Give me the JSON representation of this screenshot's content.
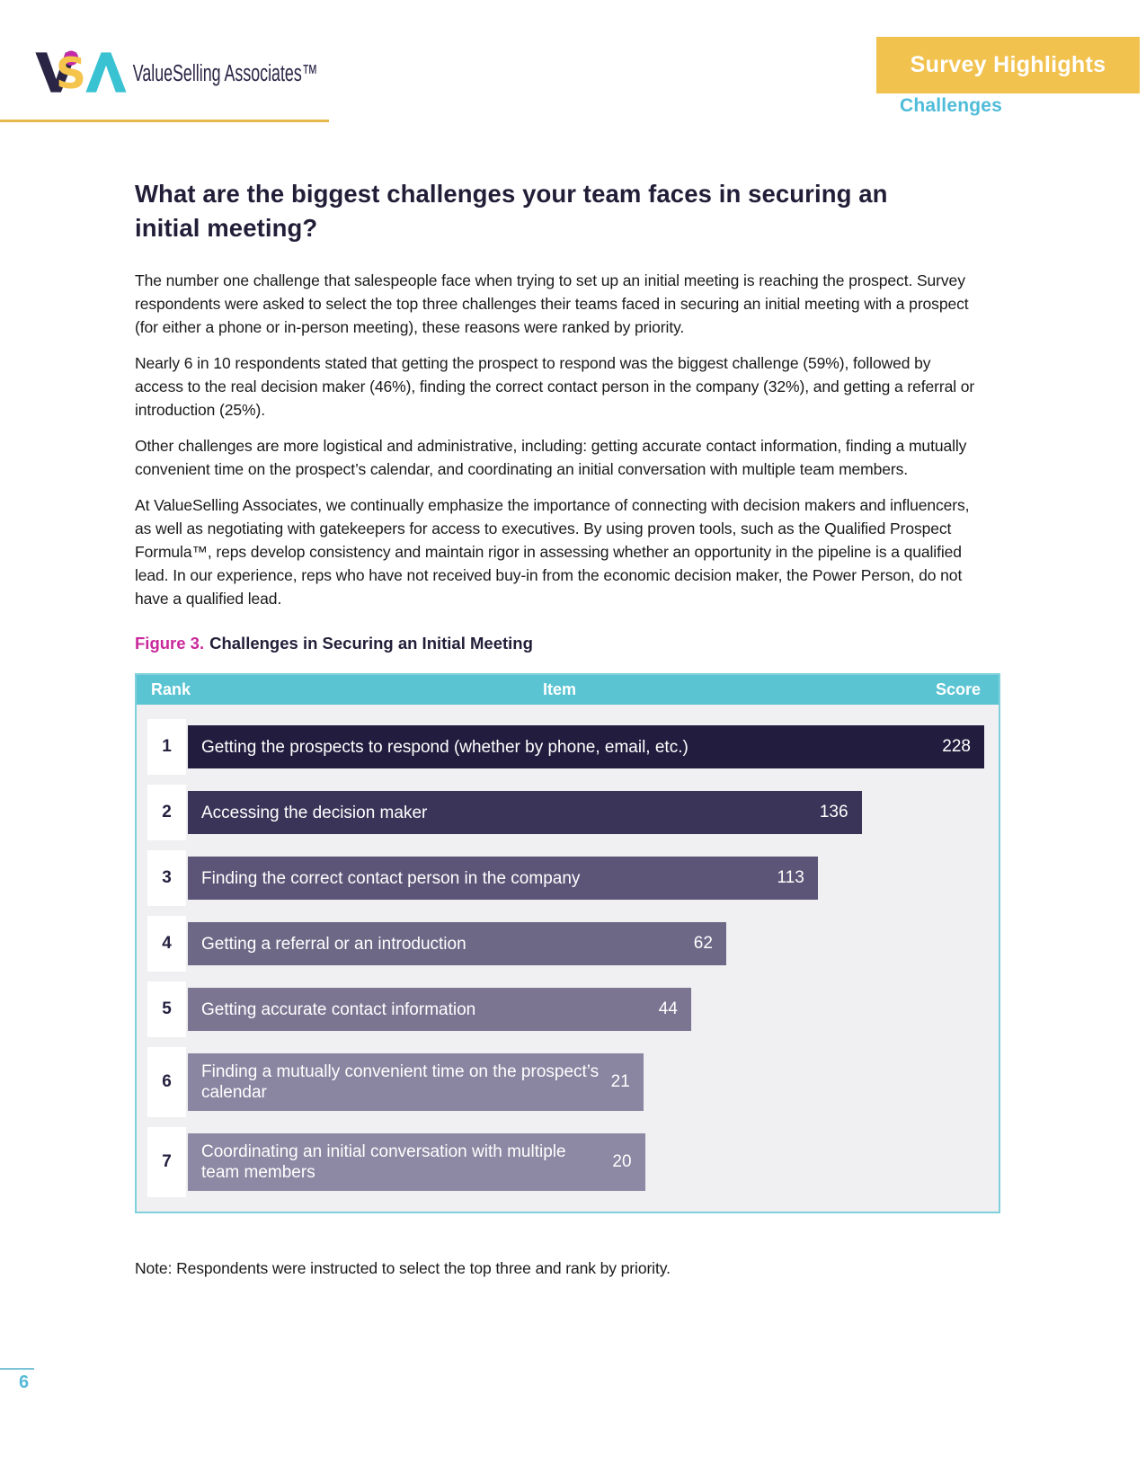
{
  "header": {
    "logo": {
      "brand": "ValueSelling Associates™"
    },
    "badge": {
      "label": "Survey Highlights"
    },
    "section": "Challenges"
  },
  "article": {
    "title": "What are the biggest challenges your team faces in securing an initial meeting?",
    "paragraphs": [
      "The number one challenge that salespeople face when trying to set up an initial meeting is reaching the prospect. Survey respondents were asked to select the top three challenges their teams faced in securing an initial meeting with a prospect (for either a phone or in-person meeting), these reasons were ranked by priority.",
      "Nearly 6 in 10 respondents stated that getting the prospect to respond was the biggest challenge (59%), followed by access to the real decision maker (46%), finding the correct contact person in the company (32%), and getting a referral or introduction (25%).",
      "Other challenges are more logistical and administrative, including: getting accurate contact information, finding a mutually convenient time on the prospect’s calendar, and coordinating an initial conversation with multiple team members.",
      "At ValueSelling Associates, we continually emphasize the importance of connecting with decision makers and influencers, as well as negotiating with gatekeepers for access to executives. By using proven tools, such as the Qualified Prospect Formula™, reps develop consistency and maintain rigor in assessing whether an opportunity in the pipeline is a qualified lead. In our experience, reps who have not received buy-in from the economic decision maker, the Power Person, do not have a qualified lead."
    ],
    "figure_caption": {
      "prefix": "Figure 3.",
      "text": "Challenges in Securing an Initial Meeting"
    },
    "note": "Note: Respondents were instructed to select the top three and rank by priority."
  },
  "chart_data": {
    "type": "bar",
    "title": "Challenges in Securing an Initial Meeting",
    "columns": {
      "rank": "Rank",
      "item": "Item",
      "score": "Score"
    },
    "xlim": [
      0,
      228
    ],
    "legend": false,
    "rows": [
      {
        "rank": 1,
        "item": "Getting the prospects to respond (whether by phone, email, etc.)",
        "score": 228,
        "width_pct": 100,
        "color": "#221d3e",
        "lines": 1
      },
      {
        "rank": 2,
        "item": "Accessing the decision maker",
        "score": 136,
        "width_pct": 84.6,
        "color": "#3a3458",
        "lines": 1
      },
      {
        "rank": 3,
        "item": "Finding the correct contact person in the company",
        "score": 113,
        "width_pct": 79.1,
        "color": "#5c5577",
        "lines": 1
      },
      {
        "rank": 4,
        "item": "Getting a referral or an introduction",
        "score": 62,
        "width_pct": 67.6,
        "color": "#6e6887",
        "lines": 1
      },
      {
        "rank": 5,
        "item": "Getting accurate contact information",
        "score": 44,
        "width_pct": 63.2,
        "color": "#7b7592",
        "lines": 1
      },
      {
        "rank": 6,
        "item": "Finding a mutually convenient time on the prospect’s calendar",
        "score": 21,
        "width_pct": 57.2,
        "color": "#8a85a1",
        "lines": 2
      },
      {
        "rank": 7,
        "item": "Coordinating an initial conversation with multiple team members",
        "score": 20,
        "width_pct": 57.4,
        "color": "#8d88a3",
        "lines": 2
      }
    ]
  },
  "footer": {
    "page_number": "6"
  },
  "colors": {
    "accent_yellow": "#f2c24f",
    "accent_teal": "#5bc4d2",
    "accent_magenta": "#c9299b",
    "dark_navy": "#262140",
    "table_bg": "#f0eff1",
    "table_border": "#7fd0dc"
  }
}
